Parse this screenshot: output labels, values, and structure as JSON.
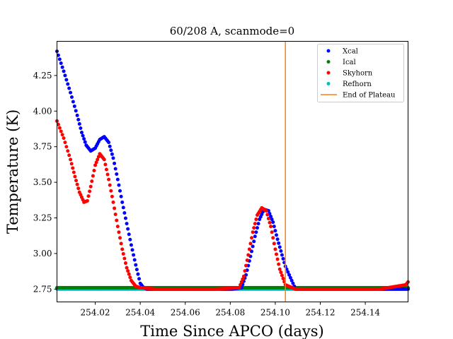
{
  "chart_data": {
    "type": "scatter",
    "title": "60/208 A, scanmode=0",
    "xlabel": "Time Since APCO (days)",
    "ylabel": "Temperature (K)",
    "xlim": [
      254.003,
      254.159
    ],
    "ylim": [
      2.66,
      4.49
    ],
    "x_ticks": [
      254.02,
      254.04,
      254.06,
      254.08,
      254.1,
      254.12,
      254.14
    ],
    "x_tick_labels": [
      "254.02",
      "254.04",
      "254.06",
      "254.08",
      "254.10",
      "254.12",
      "254.14"
    ],
    "y_ticks": [
      2.75,
      3.0,
      3.25,
      3.5,
      3.75,
      4.0,
      4.25
    ],
    "y_tick_labels": [
      "2.75",
      "3.00",
      "3.25",
      "3.50",
      "3.75",
      "4.00",
      "4.25"
    ],
    "grid": false,
    "legend_position": "top-right",
    "baseline_temperature": 2.75,
    "end_of_plateau": 254.1045,
    "series": [
      {
        "name": "Xcal",
        "color": "#0000ff",
        "x": [
          254.003,
          254.006,
          254.009,
          254.012,
          254.014,
          254.016,
          254.018,
          254.02,
          254.022,
          254.024,
          254.026,
          254.028,
          254.03,
          254.032,
          254.034,
          254.036,
          254.038,
          254.04,
          254.0415,
          254.043,
          254.047,
          254.052,
          254.057,
          254.062,
          254.066,
          254.0735,
          254.077,
          254.081,
          254.085,
          254.087,
          254.089,
          254.091,
          254.093,
          254.095,
          254.097,
          254.099,
          254.101,
          254.103,
          254.1045,
          254.109,
          254.114,
          254.119,
          254.124,
          254.129,
          254.1355,
          254.1465,
          254.151,
          254.155,
          254.159
        ],
        "y": [
          4.42,
          4.28,
          4.13,
          3.97,
          3.85,
          3.76,
          3.72,
          3.74,
          3.8,
          3.82,
          3.78,
          3.67,
          3.52,
          3.36,
          3.21,
          3.06,
          2.92,
          2.79,
          2.76,
          2.75,
          2.75,
          2.75,
          2.75,
          2.75,
          2.75,
          2.75,
          2.75,
          2.75,
          2.76,
          2.85,
          2.98,
          3.12,
          3.24,
          3.31,
          3.3,
          3.22,
          3.1,
          2.99,
          2.91,
          2.75,
          2.75,
          2.75,
          2.75,
          2.75,
          2.75,
          2.75,
          2.75,
          2.75,
          2.75
        ]
      },
      {
        "name": "Ical",
        "color": "#008000",
        "x": [
          254.003,
          254.01,
          254.02,
          254.03,
          254.04,
          254.05,
          254.06,
          254.066,
          254.0735,
          254.08,
          254.09,
          254.1,
          254.1045,
          254.109,
          254.12,
          254.1355,
          254.1465,
          254.159
        ],
        "y": [
          2.76,
          2.76,
          2.76,
          2.76,
          2.76,
          2.76,
          2.76,
          2.76,
          2.76,
          2.76,
          2.76,
          2.76,
          2.76,
          2.76,
          2.76,
          2.76,
          2.76,
          2.76
        ]
      },
      {
        "name": "Skyhorn",
        "color": "#ff0000",
        "x": [
          254.003,
          254.006,
          254.009,
          254.011,
          254.013,
          254.015,
          254.0165,
          254.018,
          254.02,
          254.022,
          254.024,
          254.026,
          254.028,
          254.03,
          254.032,
          254.034,
          254.036,
          254.038,
          254.04,
          254.047,
          254.066,
          254.0735,
          254.084,
          254.086,
          254.088,
          254.09,
          254.092,
          254.094,
          254.096,
          254.098,
          254.1,
          254.102,
          254.1045,
          254.109,
          254.1355,
          254.1465,
          254.158,
          254.159
        ],
        "y": [
          3.93,
          3.81,
          3.66,
          3.54,
          3.43,
          3.36,
          3.37,
          3.47,
          3.62,
          3.7,
          3.66,
          3.52,
          3.36,
          3.19,
          3.03,
          2.9,
          2.81,
          2.77,
          2.76,
          2.75,
          2.75,
          2.75,
          2.76,
          2.84,
          2.99,
          3.15,
          3.27,
          3.32,
          3.3,
          3.19,
          3.03,
          2.89,
          2.78,
          2.75,
          2.75,
          2.75,
          2.78,
          2.8
        ]
      },
      {
        "name": "Refhorn",
        "color": "#00bfbf",
        "x": [
          254.003,
          254.01,
          254.02,
          254.03,
          254.04,
          254.05,
          254.06,
          254.066,
          254.0735,
          254.08,
          254.09,
          254.1,
          254.1045,
          254.109,
          254.12,
          254.1355,
          254.1465,
          254.159
        ],
        "y": [
          2.75,
          2.75,
          2.75,
          2.75,
          2.75,
          2.75,
          2.75,
          2.75,
          2.75,
          2.75,
          2.75,
          2.75,
          2.75,
          2.75,
          2.75,
          2.75,
          2.75,
          2.75
        ]
      }
    ],
    "legend": [
      {
        "label": "Xcal",
        "marker": "dot",
        "color": "#0000ff"
      },
      {
        "label": "Ical",
        "marker": "dot",
        "color": "#008000"
      },
      {
        "label": "Skyhorn",
        "marker": "dot",
        "color": "#ff0000"
      },
      {
        "label": "Refhorn",
        "marker": "dot",
        "color": "#00bfbf"
      },
      {
        "label": "End of Plateau",
        "marker": "line",
        "color": "#ff7f0e"
      }
    ]
  }
}
